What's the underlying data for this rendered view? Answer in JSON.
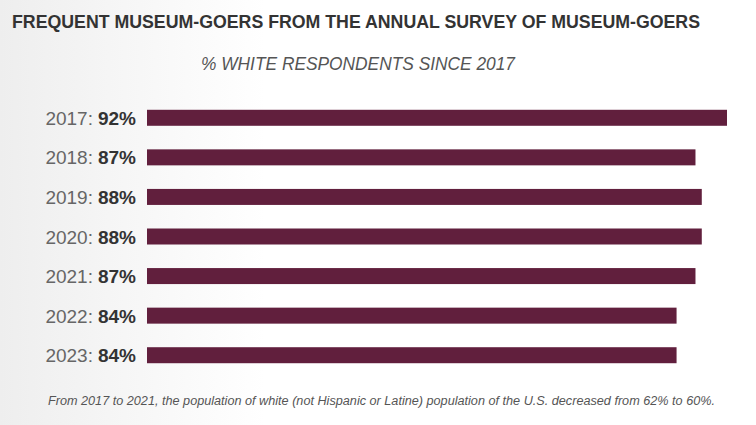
{
  "chart_data": {
    "type": "bar",
    "orientation": "horizontal",
    "title": "FREQUENT MUSEUM-GOERS FROM THE ANNUAL SURVEY OF MUSEUM-GOERS",
    "subtitle": "% WHITE RESPONDENTS SINCE 2017",
    "categories": [
      "2017:",
      "2018:",
      "2019:",
      "2020:",
      "2021:",
      "2022:",
      "2023:"
    ],
    "values": [
      92,
      87,
      88,
      88,
      87,
      84,
      84
    ],
    "value_labels": [
      "92%",
      "87%",
      "88%",
      "88%",
      "87%",
      "84%",
      "84%"
    ],
    "color": "#611f3d",
    "xlim": [
      0,
      92
    ],
    "data_labels": true,
    "tick_labels": false,
    "grid": false,
    "annotations": [
      "From 2017 to 2021, the population of white (not Hispanic or Latine) population of the U.S. decreased from 62% to 60%."
    ]
  }
}
